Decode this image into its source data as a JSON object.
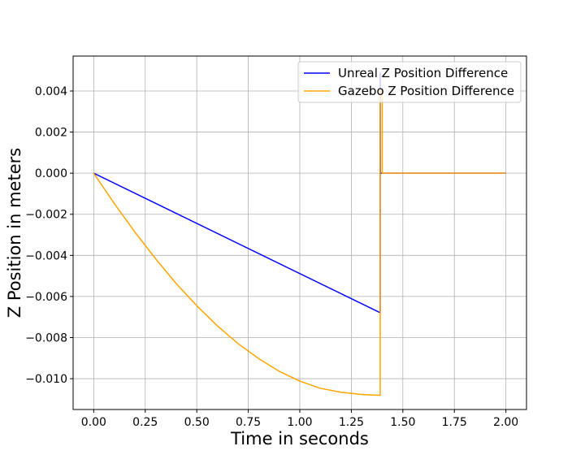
{
  "chart_data": {
    "type": "line",
    "xlabel": "Time in seconds",
    "ylabel": "Z Position in meters",
    "xlim": [
      -0.1,
      2.1
    ],
    "ylim": [
      -0.0115,
      0.0057
    ],
    "xticks": [
      0.0,
      0.25,
      0.5,
      0.75,
      1.0,
      1.25,
      1.5,
      1.75,
      2.0
    ],
    "xtick_labels": [
      "0.00",
      "0.25",
      "0.50",
      "0.75",
      "1.00",
      "1.25",
      "1.50",
      "1.75",
      "2.00"
    ],
    "yticks": [
      -0.01,
      -0.008,
      -0.006,
      -0.004,
      -0.002,
      0.0,
      0.002,
      0.004
    ],
    "ytick_labels": [
      "−0.010",
      "−0.008",
      "−0.006",
      "−0.004",
      "−0.002",
      "0.000",
      "0.002",
      "0.004"
    ],
    "grid": true,
    "legend_position": "top-right",
    "series": [
      {
        "name": "Unreal Z Position Difference",
        "color": "#0000ff",
        "x": [
          0.0,
          1.39,
          1.39,
          1.391,
          1.4,
          2.0
        ],
        "y": [
          0.0,
          -0.00679,
          0.0049,
          0.0,
          0.0,
          0.0
        ]
      },
      {
        "name": "Gazebo Z Position Difference",
        "color": "#ffa500",
        "x": [
          0.0,
          0.1,
          0.2,
          0.3,
          0.4,
          0.5,
          0.6,
          0.7,
          0.8,
          0.9,
          1.0,
          1.1,
          1.2,
          1.3,
          1.38,
          1.39,
          1.39,
          1.4,
          1.4,
          2.0
        ],
        "y": [
          0.0,
          -0.00148,
          -0.00287,
          -0.00416,
          -0.00537,
          -0.00645,
          -0.00743,
          -0.00829,
          -0.00902,
          -0.00964,
          -0.01012,
          -0.01047,
          -0.01066,
          -0.01077,
          -0.01081,
          -0.01081,
          0.0041,
          0.0041,
          0.0,
          0.0
        ]
      }
    ]
  }
}
